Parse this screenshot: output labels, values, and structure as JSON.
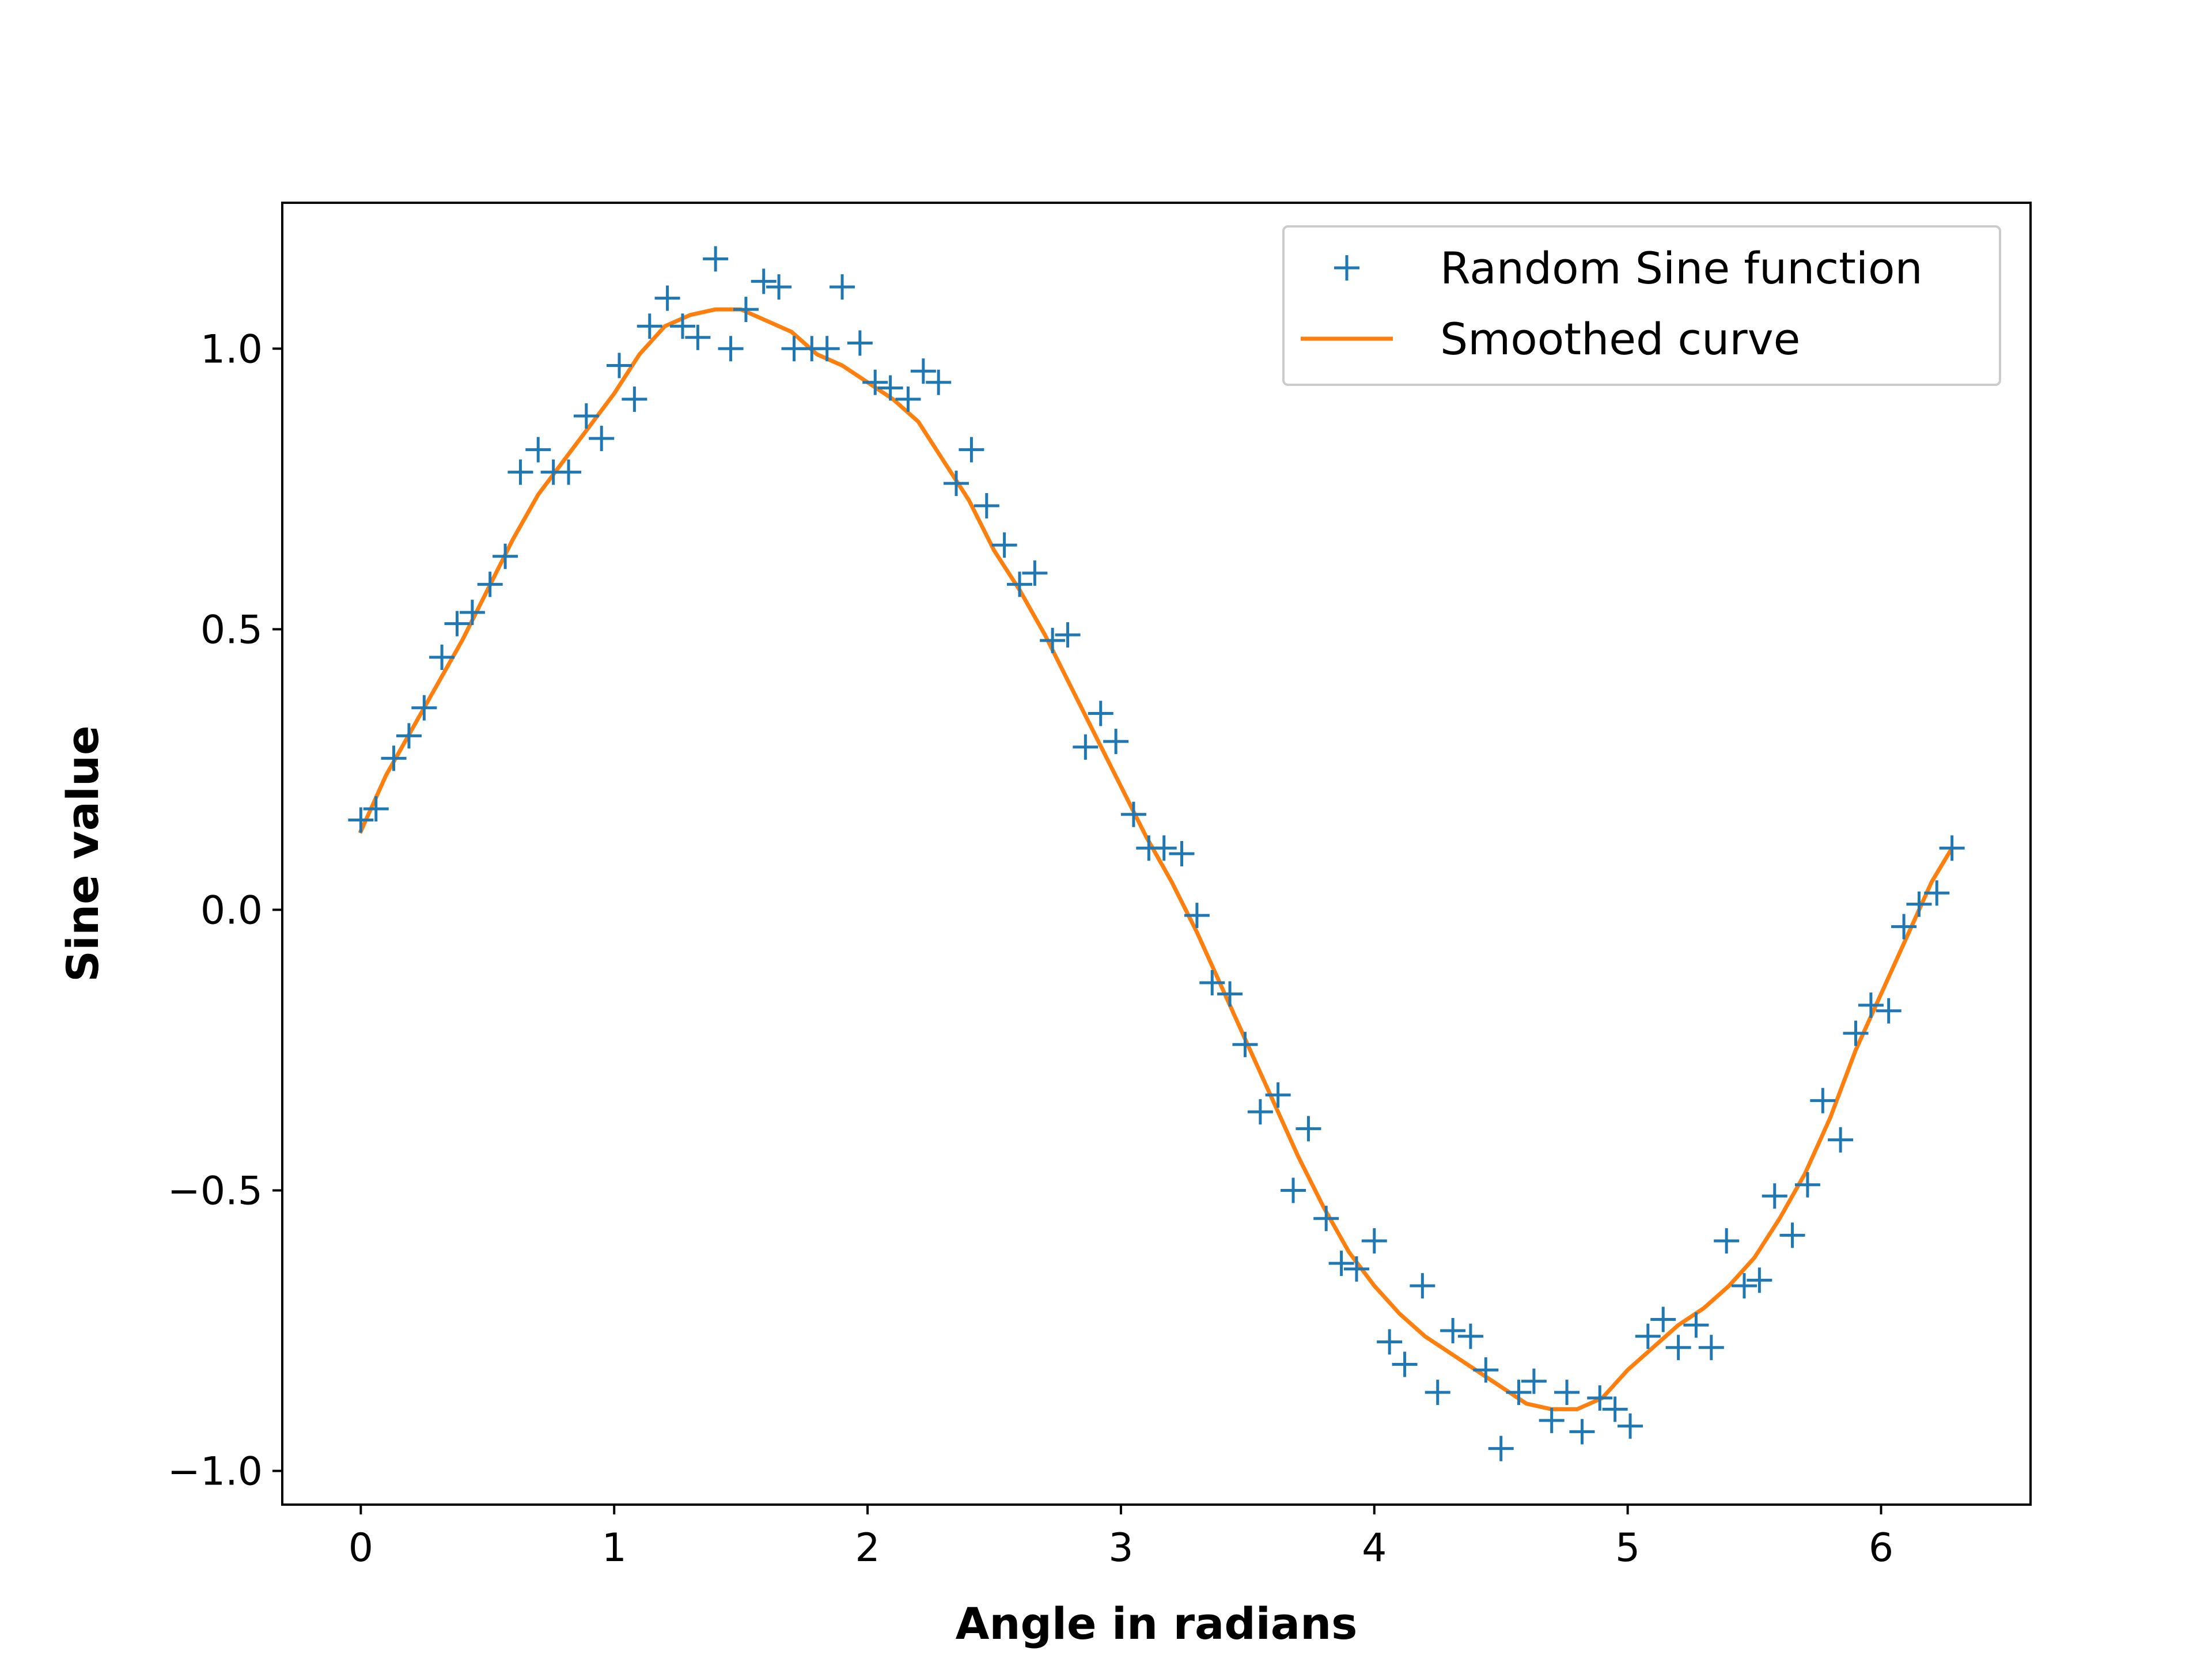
{
  "chart_data": {
    "type": "scatter",
    "title": "",
    "xlabel": "Angle in radians",
    "ylabel": "Sine value",
    "xlim": [
      -0.31,
      6.59
    ],
    "ylim": [
      -1.06,
      1.26
    ],
    "x_ticks": [
      0,
      1,
      2,
      3,
      4,
      5,
      6
    ],
    "x_tick_labels": [
      "0",
      "1",
      "2",
      "3",
      "4",
      "5",
      "6"
    ],
    "y_ticks": [
      -1.0,
      -0.5,
      0.0,
      0.5,
      1.0
    ],
    "y_tick_labels": [
      "−1.0",
      "−0.5",
      "0.0",
      "0.5",
      "1.0"
    ],
    "grid": false,
    "legend_position": "top-right",
    "series": [
      {
        "name": "Random Sine function",
        "kind": "scatter",
        "marker": "plus",
        "color": "#1f77b4",
        "x": [
          0.0,
          0.06,
          0.13,
          0.19,
          0.25,
          0.32,
          0.38,
          0.44,
          0.51,
          0.57,
          0.63,
          0.7,
          0.76,
          0.82,
          0.89,
          0.95,
          1.02,
          1.08,
          1.14,
          1.21,
          1.27,
          1.33,
          1.4,
          1.46,
          1.52,
          1.59,
          1.65,
          1.71,
          1.78,
          1.84,
          1.9,
          1.97,
          2.03,
          2.09,
          2.16,
          2.22,
          2.28,
          2.35,
          2.41,
          2.47,
          2.54,
          2.6,
          2.66,
          2.73,
          2.79,
          2.86,
          2.92,
          2.98,
          3.05,
          3.11,
          3.17,
          3.24,
          3.3,
          3.36,
          3.43,
          3.49,
          3.55,
          3.62,
          3.68,
          3.74,
          3.81,
          3.87,
          3.93,
          4.0,
          4.06,
          4.12,
          4.19,
          4.25,
          4.31,
          4.38,
          4.44,
          4.5,
          4.57,
          4.63,
          4.7,
          4.76,
          4.82,
          4.89,
          4.95,
          5.01,
          5.08,
          5.14,
          5.2,
          5.27,
          5.33,
          5.39,
          5.46,
          5.52,
          5.58,
          5.65,
          5.71,
          5.77,
          5.84,
          5.9,
          5.96,
          6.03,
          6.09,
          6.15,
          6.22,
          6.28
        ],
        "y": [
          0.16,
          0.18,
          0.27,
          0.31,
          0.36,
          0.45,
          0.51,
          0.53,
          0.58,
          0.63,
          0.78,
          0.82,
          0.78,
          0.78,
          0.88,
          0.84,
          0.97,
          0.91,
          1.04,
          1.09,
          1.04,
          1.02,
          1.16,
          1.0,
          1.07,
          1.12,
          1.11,
          1.0,
          1.0,
          1.0,
          1.11,
          1.01,
          0.94,
          0.93,
          0.91,
          0.96,
          0.94,
          0.76,
          0.82,
          0.72,
          0.65,
          0.58,
          0.6,
          0.48,
          0.49,
          0.29,
          0.35,
          0.3,
          0.17,
          0.11,
          0.11,
          0.1,
          -0.01,
          -0.13,
          -0.15,
          -0.24,
          -0.36,
          -0.33,
          -0.5,
          -0.39,
          -0.55,
          -0.63,
          -0.64,
          -0.59,
          -0.77,
          -0.81,
          -0.67,
          -0.86,
          -0.75,
          -0.76,
          -0.82,
          -0.96,
          -0.86,
          -0.84,
          -0.91,
          -0.86,
          -0.93,
          -0.87,
          -0.89,
          -0.92,
          -0.76,
          -0.73,
          -0.78,
          -0.74,
          -0.78,
          -0.59,
          -0.67,
          -0.66,
          -0.51,
          -0.58,
          -0.49,
          -0.34,
          -0.41,
          -0.22,
          -0.17,
          -0.18,
          -0.03,
          0.01,
          0.03,
          0.11
        ]
      },
      {
        "name": "Smoothed curve",
        "kind": "line",
        "color": "#ff7f0e",
        "x": [
          0.0,
          0.1,
          0.2,
          0.3,
          0.4,
          0.5,
          0.6,
          0.7,
          0.8,
          0.9,
          1.0,
          1.1,
          1.2,
          1.3,
          1.4,
          1.5,
          1.6,
          1.7,
          1.8,
          1.9,
          2.0,
          2.1,
          2.2,
          2.3,
          2.4,
          2.5,
          2.6,
          2.7,
          2.8,
          2.9,
          3.0,
          3.1,
          3.2,
          3.3,
          3.4,
          3.5,
          3.6,
          3.7,
          3.8,
          3.9,
          4.0,
          4.1,
          4.2,
          4.3,
          4.4,
          4.5,
          4.6,
          4.7,
          4.8,
          4.9,
          5.0,
          5.1,
          5.2,
          5.3,
          5.4,
          5.5,
          5.6,
          5.7,
          5.8,
          5.9,
          6.0,
          6.1,
          6.2,
          6.28
        ],
        "y": [
          0.14,
          0.24,
          0.32,
          0.4,
          0.48,
          0.57,
          0.66,
          0.74,
          0.8,
          0.86,
          0.92,
          0.99,
          1.04,
          1.06,
          1.07,
          1.07,
          1.05,
          1.03,
          0.99,
          0.97,
          0.94,
          0.91,
          0.87,
          0.8,
          0.73,
          0.64,
          0.57,
          0.49,
          0.4,
          0.31,
          0.22,
          0.13,
          0.05,
          -0.04,
          -0.14,
          -0.24,
          -0.34,
          -0.44,
          -0.53,
          -0.61,
          -0.67,
          -0.72,
          -0.76,
          -0.79,
          -0.82,
          -0.85,
          -0.88,
          -0.89,
          -0.89,
          -0.87,
          -0.82,
          -0.78,
          -0.74,
          -0.71,
          -0.67,
          -0.62,
          -0.55,
          -0.47,
          -0.37,
          -0.25,
          -0.15,
          -0.05,
          0.05,
          0.11
        ]
      }
    ]
  }
}
